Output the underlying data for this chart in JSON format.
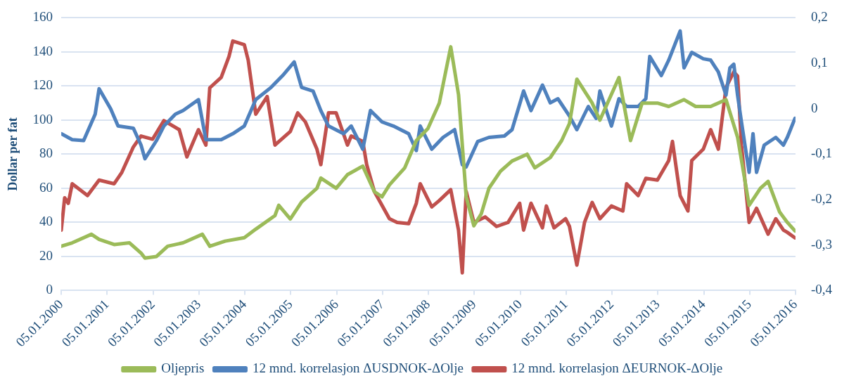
{
  "chart_data": {
    "type": "line",
    "ylabel": "Dollar per fat",
    "xlim": [
      "2000-01-05",
      "2016-01-05"
    ],
    "xticks": [
      {
        "value": "2000-01-05",
        "label": "05.01.2000"
      },
      {
        "value": "2001-01-05",
        "label": "05.01.2001"
      },
      {
        "value": "2002-01-05",
        "label": "05.01.2002"
      },
      {
        "value": "2003-01-05",
        "label": "05.01.2003"
      },
      {
        "value": "2004-01-05",
        "label": "05.01.2004"
      },
      {
        "value": "2005-01-05",
        "label": "05.01.2005"
      },
      {
        "value": "2006-01-05",
        "label": "05.01.2006"
      },
      {
        "value": "2007-01-05",
        "label": "05.01.2007"
      },
      {
        "value": "2008-01-05",
        "label": "05.01.2008"
      },
      {
        "value": "2009-01-05",
        "label": "05.01.2009"
      },
      {
        "value": "2010-01-05",
        "label": "05.01.2010"
      },
      {
        "value": "2011-01-05",
        "label": "05.01.2011"
      },
      {
        "value": "2012-01-05",
        "label": "05.01.2012"
      },
      {
        "value": "2013-01-05",
        "label": "05.01.2013"
      },
      {
        "value": "2014-01-05",
        "label": "05.01.2014"
      },
      {
        "value": "2015-01-05",
        "label": "05.01.2015"
      },
      {
        "value": "2016-01-05",
        "label": "05.01.2016"
      }
    ],
    "ylim": [
      0,
      160
    ],
    "yticks": [
      0,
      20,
      40,
      60,
      80,
      100,
      120,
      140,
      160
    ],
    "y2lim": [
      -0.4,
      0.2
    ],
    "y2ticks": [
      {
        "value": -0.4,
        "label": "-0,4"
      },
      {
        "value": -0.3,
        "label": "-0,3"
      },
      {
        "value": -0.2,
        "label": "-0,2"
      },
      {
        "value": -0.1,
        "label": "-0,1"
      },
      0,
      {
        "value": 0.1,
        "label": "0,1"
      },
      {
        "value": 0.2,
        "label": "0,2"
      }
    ],
    "grid": "y",
    "legend": "bottom",
    "marker": "none",
    "line_style": "solid",
    "series": [
      {
        "name": "Oljepris",
        "color": "#9bbb59",
        "x": [
          "2000-01-05",
          "2000-04",
          "2000-09",
          "2000-11",
          "2001-03",
          "2001-07",
          "2001-10",
          "2001-11",
          "2002-02",
          "2002-05",
          "2002-09",
          "2003-02",
          "2003-04",
          "2003-08",
          "2004-01",
          "2004-04",
          "2004-09",
          "2004-10",
          "2005-01",
          "2005-04",
          "2005-08",
          "2005-09",
          "2006-01",
          "2006-04",
          "2006-08",
          "2006-11",
          "2007-01",
          "2007-03",
          "2007-07",
          "2007-10",
          "2008-01",
          "2008-04",
          "2008-07",
          "2008-09",
          "2008-11",
          "2009-01",
          "2009-03",
          "2009-05",
          "2009-08",
          "2009-11",
          "2010-03",
          "2010-05",
          "2010-09",
          "2010-12",
          "2011-02",
          "2011-04",
          "2011-08",
          "2011-10",
          "2012-03",
          "2012-06",
          "2012-09",
          "2013-01",
          "2013-04",
          "2013-08",
          "2013-11",
          "2014-03",
          "2014-07",
          "2014-10",
          "2015-01",
          "2015-04",
          "2015-06",
          "2015-09",
          "2015-11",
          "2016-01"
        ],
        "values": [
          26,
          28,
          33,
          30,
          27,
          28,
          22,
          19,
          20,
          26,
          28,
          33,
          26,
          29,
          31,
          36,
          44,
          50,
          42,
          52,
          60,
          66,
          60,
          68,
          73,
          58,
          55,
          62,
          72,
          88,
          95,
          110,
          143,
          115,
          55,
          38,
          45,
          60,
          70,
          76,
          80,
          72,
          78,
          88,
          98,
          124,
          110,
          100,
          125,
          88,
          110,
          110,
          108,
          112,
          108,
          108,
          112,
          90,
          50,
          60,
          64,
          46,
          40,
          35
        ]
      },
      {
        "name": "12 mnd. korrelasjon ΔUSDNOK-ΔOlje",
        "color": "#4f81bd",
        "axis": "y2",
        "x": [
          "2000-01-05",
          "2000-04",
          "2000-07",
          "2000-10",
          "2000-11",
          "2001-02",
          "2001-04",
          "2001-08",
          "2001-10",
          "2001-11",
          "2002-02",
          "2002-04",
          "2002-07",
          "2002-09",
          "2003-01",
          "2003-03",
          "2003-07",
          "2003-10",
          "2004-01",
          "2004-04",
          "2004-08",
          "2004-11",
          "2005-02",
          "2005-04",
          "2005-07",
          "2005-09",
          "2005-11",
          "2006-03",
          "2006-05",
          "2006-08",
          "2006-10",
          "2007-01",
          "2007-04",
          "2007-08",
          "2007-10",
          "2007-11",
          "2008-02",
          "2008-05",
          "2008-08",
          "2008-10",
          "2008-11",
          "2009-02",
          "2009-05",
          "2009-09",
          "2009-11",
          "2010-02",
          "2010-04",
          "2010-07",
          "2010-09",
          "2010-11",
          "2011-02",
          "2011-04",
          "2011-07",
          "2011-09",
          "2011-10",
          "2012-01",
          "2012-03",
          "2012-05",
          "2012-08",
          "2012-10",
          "2012-11",
          "2013-02",
          "2013-04",
          "2013-07",
          "2013-08",
          "2013-10",
          "2014-01",
          "2014-03",
          "2014-05",
          "2014-07",
          "2014-08",
          "2014-09",
          "2014-10",
          "2014-11",
          "2015-01",
          "2015-02",
          "2015-03",
          "2015-05",
          "2015-08",
          "2015-10",
          "2015-11",
          "2016-01"
        ],
        "values": [
          -0.055,
          -0.068,
          -0.07,
          -0.012,
          0.044,
          0,
          -0.038,
          -0.043,
          -0.08,
          -0.11,
          -0.07,
          -0.038,
          -0.012,
          -0.004,
          0.02,
          -0.068,
          -0.068,
          -0.055,
          -0.038,
          0.02,
          0.047,
          0.073,
          0.103,
          0.047,
          0.039,
          -0.004,
          -0.038,
          -0.055,
          -0.038,
          -0.089,
          -0.004,
          -0.029,
          -0.038,
          -0.055,
          -0.092,
          -0.038,
          -0.089,
          -0.063,
          -0.046,
          -0.123,
          -0.128,
          -0.072,
          -0.063,
          -0.06,
          -0.046,
          0.039,
          -0.004,
          0.052,
          0.013,
          0.022,
          -0.016,
          -0.046,
          0.005,
          -0.021,
          0.039,
          -0.038,
          0.022,
          0.005,
          0.005,
          0.022,
          0.115,
          0.073,
          0.107,
          0.171,
          0.09,
          0.124,
          0.11,
          0.107,
          0.081,
          0.03,
          0.09,
          0.098,
          0.03,
          -0.029,
          -0.14,
          -0.055,
          -0.14,
          -0.08,
          -0.063,
          -0.08,
          -0.063,
          -0.021
        ]
      },
      {
        "name": "12 mnd. korrelasjon ΔEURNOK-ΔOlje",
        "color": "#c0504d",
        "axis": "y2",
        "x": [
          "2000-01-05",
          "2000-02",
          "2000-03",
          "2000-04",
          "2000-08",
          "2000-11",
          "2001-03",
          "2001-05",
          "2001-08",
          "2001-10",
          "2002-01",
          "2002-04",
          "2002-08",
          "2002-10",
          "2003-01",
          "2003-03",
          "2003-04",
          "2003-07",
          "2003-09",
          "2003-10",
          "2004-01",
          "2004-02",
          "2004-04",
          "2004-07",
          "2004-09",
          "2005-01",
          "2005-03",
          "2005-05",
          "2005-08",
          "2005-09",
          "2005-11",
          "2006-01",
          "2006-04",
          "2006-05",
          "2006-08",
          "2006-09",
          "2006-11",
          "2007-03",
          "2007-05",
          "2007-08",
          "2007-10",
          "2007-11",
          "2008-02",
          "2008-04",
          "2008-07",
          "2008-09",
          "2008-10",
          "2008-11",
          "2009-01",
          "2009-04",
          "2009-07",
          "2009-10",
          "2010-01",
          "2010-02",
          "2010-04",
          "2010-07",
          "2010-08",
          "2010-10",
          "2011-01",
          "2011-02",
          "2011-04",
          "2011-06",
          "2011-08",
          "2011-10",
          "2012-01",
          "2012-04",
          "2012-05",
          "2012-08",
          "2012-10",
          "2013-01",
          "2013-04",
          "2013-05",
          "2013-07",
          "2013-09",
          "2013-10",
          "2014-01",
          "2014-03",
          "2014-05",
          "2014-07",
          "2014-09",
          "2014-10",
          "2014-11",
          "2015-01",
          "2015-03",
          "2015-06",
          "2015-08",
          "2015-10",
          "2015-11",
          "2016-01"
        ],
        "values": [
          -0.267,
          -0.196,
          -0.208,
          -0.165,
          -0.191,
          -0.157,
          -0.165,
          -0.14,
          -0.084,
          -0.06,
          -0.067,
          -0.026,
          -0.046,
          -0.106,
          -0.046,
          -0.08,
          0.046,
          0.069,
          0.115,
          0.149,
          0.141,
          0.107,
          -0.012,
          0.027,
          -0.08,
          -0.05,
          -0.009,
          -0.029,
          -0.089,
          -0.123,
          -0.009,
          -0.009,
          -0.08,
          -0.06,
          -0.072,
          -0.123,
          -0.182,
          -0.242,
          -0.25,
          -0.253,
          -0.208,
          -0.165,
          -0.216,
          -0.202,
          -0.178,
          -0.267,
          -0.361,
          -0.182,
          -0.25,
          -0.238,
          -0.259,
          -0.25,
          -0.208,
          -0.267,
          -0.208,
          -0.262,
          -0.214,
          -0.262,
          -0.242,
          -0.259,
          -0.344,
          -0.25,
          -0.206,
          -0.242,
          -0.214,
          -0.225,
          -0.165,
          -0.191,
          -0.153,
          -0.157,
          -0.114,
          -0.072,
          -0.191,
          -0.225,
          -0.114,
          -0.089,
          -0.046,
          -0.089,
          0.047,
          0.081,
          0.072,
          -0.08,
          -0.25,
          -0.219,
          -0.276,
          -0.242,
          -0.267,
          -0.272,
          -0.284
        ]
      }
    ]
  }
}
